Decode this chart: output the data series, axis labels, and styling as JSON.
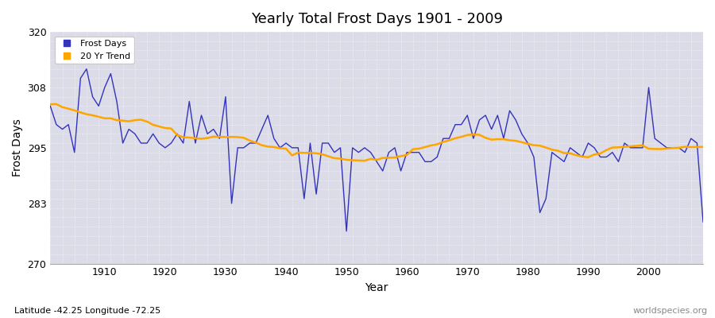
{
  "title": "Yearly Total Frost Days 1901 - 2009",
  "xlabel": "Year",
  "ylabel": "Frost Days",
  "subtitle": "Latitude -42.25 Longitude -72.25",
  "watermark": "worldspecies.org",
  "ylim": [
    270,
    320
  ],
  "yticks": [
    270,
    283,
    295,
    308,
    320
  ],
  "xlim": [
    1901,
    2009
  ],
  "line_color": "#3333bb",
  "trend_color": "#FFA500",
  "bg_color": "#dcdce8",
  "years": [
    1901,
    1902,
    1903,
    1904,
    1905,
    1906,
    1907,
    1908,
    1909,
    1910,
    1911,
    1912,
    1913,
    1914,
    1915,
    1916,
    1917,
    1918,
    1919,
    1920,
    1921,
    1922,
    1923,
    1924,
    1925,
    1926,
    1927,
    1928,
    1929,
    1930,
    1931,
    1932,
    1933,
    1934,
    1935,
    1936,
    1937,
    1938,
    1939,
    1940,
    1941,
    1942,
    1943,
    1944,
    1945,
    1946,
    1947,
    1948,
    1949,
    1950,
    1951,
    1952,
    1953,
    1954,
    1955,
    1956,
    1957,
    1958,
    1959,
    1960,
    1961,
    1962,
    1963,
    1964,
    1965,
    1966,
    1967,
    1968,
    1969,
    1970,
    1971,
    1972,
    1973,
    1974,
    1975,
    1976,
    1977,
    1978,
    1979,
    1980,
    1981,
    1982,
    1983,
    1984,
    1985,
    1986,
    1987,
    1988,
    1989,
    1990,
    1991,
    1992,
    1993,
    1994,
    1995,
    1996,
    1997,
    1998,
    1999,
    2000,
    2001,
    2002,
    2003,
    2004,
    2005,
    2006,
    2007,
    2008,
    2009
  ],
  "frost_days": [
    304,
    300,
    299,
    300,
    294,
    310,
    312,
    306,
    304,
    308,
    311,
    305,
    296,
    299,
    298,
    296,
    296,
    298,
    296,
    295,
    296,
    298,
    296,
    305,
    296,
    302,
    298,
    299,
    297,
    306,
    283,
    295,
    295,
    296,
    296,
    299,
    302,
    297,
    295,
    296,
    295,
    295,
    284,
    296,
    285,
    296,
    296,
    294,
    295,
    277,
    295,
    294,
    295,
    294,
    292,
    290,
    294,
    295,
    290,
    294,
    294,
    294,
    292,
    292,
    293,
    297,
    297,
    300,
    300,
    302,
    297,
    301,
    302,
    299,
    302,
    297,
    303,
    301,
    298,
    296,
    293,
    281,
    284,
    294,
    293,
    292,
    295,
    294,
    293,
    296,
    295,
    293,
    293,
    294,
    292,
    296,
    295,
    295,
    295,
    308,
    297,
    296,
    295,
    295,
    295,
    294,
    297,
    296,
    279
  ]
}
